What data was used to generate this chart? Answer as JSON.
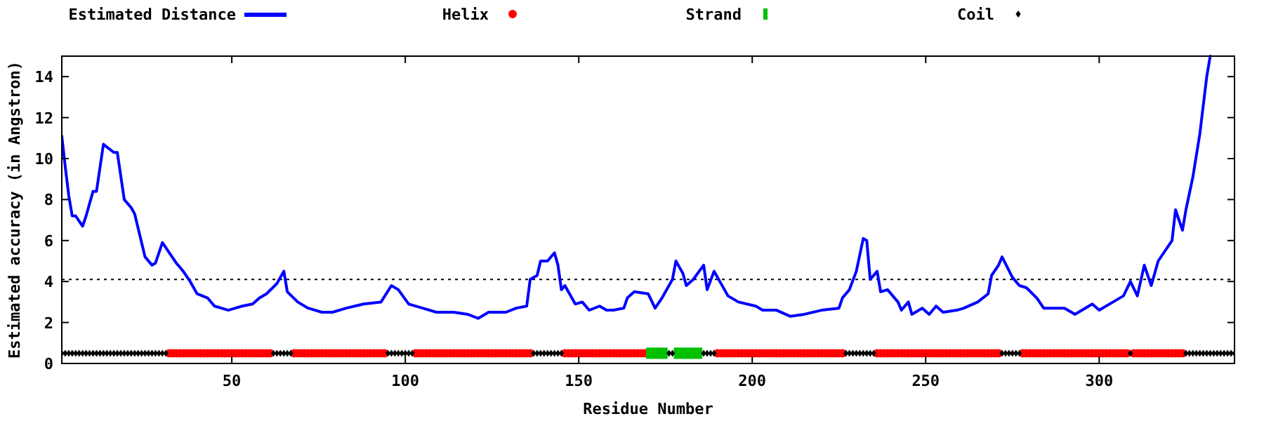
{
  "chart_data": {
    "type": "line",
    "xlabel": "Residue Number",
    "ylabel": "Estimated accuracy (in Angstron)",
    "xlim": [
      1,
      339
    ],
    "ylim": [
      0,
      15
    ],
    "xticks": [
      50,
      100,
      150,
      200,
      250,
      300
    ],
    "yticks": [
      0,
      2,
      4,
      6,
      8,
      10,
      12,
      14
    ],
    "grid": false,
    "legend": "top",
    "ref_lines": [
      {
        "axis": "y",
        "value": 4.1,
        "color": "#000000",
        "line_style": "dotted"
      }
    ],
    "series": [
      {
        "name": "Estimated Distance",
        "color": "#0000ff",
        "marker": "none",
        "x": [
          1,
          2,
          3,
          4,
          5,
          7,
          8,
          10,
          11,
          13,
          16,
          17,
          19,
          21,
          22,
          25,
          27,
          28,
          30,
          32,
          34,
          36,
          38,
          40,
          43,
          45,
          47,
          49,
          51,
          53,
          56,
          58,
          60,
          63,
          65,
          66,
          69,
          72,
          76,
          79,
          83,
          88,
          93,
          96,
          98,
          101,
          105,
          109,
          114,
          118,
          121,
          124,
          129,
          132,
          135,
          136,
          138,
          139,
          141,
          143,
          144,
          145,
          146,
          149,
          151,
          153,
          156,
          158,
          160,
          163,
          164,
          166,
          170,
          172,
          174,
          177,
          178,
          180,
          181,
          183,
          186,
          187,
          189,
          191,
          193,
          196,
          201,
          203,
          207,
          211,
          215,
          220,
          225,
          226,
          228,
          230,
          232,
          233,
          234,
          236,
          237,
          239,
          242,
          243,
          245,
          246,
          249,
          251,
          253,
          255,
          259,
          261,
          265,
          268,
          269,
          271,
          272,
          275,
          277,
          279,
          282,
          284,
          287,
          290,
          293,
          296,
          298,
          300,
          304,
          307,
          309,
          311,
          313,
          315,
          317,
          321,
          322,
          324,
          325,
          327,
          329,
          331,
          332
        ],
        "values": [
          11.1,
          9.6,
          8.2,
          7.2,
          7.2,
          6.7,
          7.2,
          8.4,
          8.4,
          10.7,
          10.3,
          10.3,
          8.0,
          7.6,
          7.3,
          5.2,
          4.8,
          4.9,
          5.9,
          5.4,
          4.9,
          4.5,
          4.0,
          3.4,
          3.2,
          2.8,
          2.7,
          2.6,
          2.7,
          2.8,
          2.9,
          3.2,
          3.4,
          3.9,
          4.5,
          3.5,
          3.0,
          2.7,
          2.5,
          2.5,
          2.7,
          2.9,
          3.0,
          3.8,
          3.6,
          2.9,
          2.7,
          2.5,
          2.5,
          2.4,
          2.2,
          2.5,
          2.5,
          2.7,
          2.8,
          4.1,
          4.3,
          5.0,
          5.0,
          5.4,
          4.8,
          3.6,
          3.8,
          2.9,
          3.0,
          2.6,
          2.8,
          2.6,
          2.6,
          2.7,
          3.2,
          3.5,
          3.4,
          2.7,
          3.2,
          4.1,
          5.0,
          4.4,
          3.8,
          4.1,
          4.8,
          3.6,
          4.5,
          3.9,
          3.3,
          3.0,
          2.8,
          2.6,
          2.6,
          2.3,
          2.4,
          2.6,
          2.7,
          3.2,
          3.6,
          4.5,
          6.1,
          6.0,
          4.1,
          4.5,
          3.5,
          3.6,
          3.0,
          2.6,
          3.0,
          2.4,
          2.7,
          2.4,
          2.8,
          2.5,
          2.6,
          2.7,
          3.0,
          3.4,
          4.3,
          4.8,
          5.2,
          4.2,
          3.8,
          3.7,
          3.2,
          2.7,
          2.7,
          2.7,
          2.4,
          2.7,
          2.9,
          2.6,
          3.0,
          3.3,
          4.0,
          3.3,
          4.8,
          3.8,
          5.0,
          6.0,
          7.5,
          6.5,
          7.5,
          9.1,
          11.2,
          14.0,
          15
        ]
      },
      {
        "name": "Helix",
        "type": "scatter",
        "color": "#ff0000",
        "marker": "circle",
        "x": [
          32,
          33,
          34,
          35,
          36,
          37,
          38,
          39,
          40,
          41,
          42,
          43,
          44,
          45,
          46,
          47,
          48,
          49,
          50,
          51,
          52,
          53,
          54,
          55,
          56,
          57,
          58,
          59,
          60,
          61,
          68,
          69,
          70,
          71,
          72,
          73,
          74,
          75,
          76,
          77,
          78,
          79,
          80,
          81,
          82,
          83,
          84,
          85,
          86,
          87,
          88,
          89,
          90,
          91,
          92,
          93,
          94,
          103,
          104,
          105,
          106,
          107,
          108,
          109,
          110,
          111,
          112,
          113,
          114,
          115,
          116,
          117,
          118,
          119,
          120,
          121,
          122,
          123,
          124,
          125,
          126,
          127,
          128,
          129,
          130,
          131,
          132,
          133,
          134,
          135,
          136,
          146,
          147,
          148,
          149,
          150,
          151,
          152,
          153,
          154,
          155,
          156,
          157,
          158,
          159,
          160,
          161,
          162,
          163,
          164,
          165,
          166,
          167,
          168,
          169,
          190,
          191,
          192,
          193,
          194,
          195,
          196,
          197,
          198,
          199,
          200,
          201,
          202,
          203,
          204,
          205,
          206,
          207,
          208,
          209,
          210,
          211,
          212,
          213,
          214,
          215,
          216,
          217,
          218,
          219,
          220,
          221,
          222,
          223,
          224,
          225,
          226,
          236,
          237,
          238,
          239,
          240,
          241,
          242,
          243,
          244,
          245,
          246,
          247,
          248,
          249,
          250,
          251,
          252,
          253,
          254,
          255,
          256,
          257,
          258,
          259,
          260,
          261,
          262,
          263,
          264,
          265,
          266,
          267,
          268,
          269,
          270,
          271,
          278,
          279,
          280,
          281,
          282,
          283,
          284,
          285,
          286,
          287,
          288,
          289,
          290,
          291,
          292,
          293,
          294,
          295,
          296,
          297,
          298,
          299,
          300,
          301,
          302,
          303,
          304,
          305,
          306,
          307,
          308,
          310,
          311,
          312,
          313,
          314,
          315,
          316,
          317,
          318,
          319,
          320,
          321,
          322,
          323,
          324
        ],
        "values": [
          0.5,
          0.5,
          0.5,
          0.5,
          0.5,
          0.5,
          0.5,
          0.5,
          0.5,
          0.5,
          0.5,
          0.5,
          0.5,
          0.5,
          0.5,
          0.5,
          0.5,
          0.5,
          0.5,
          0.5,
          0.5,
          0.5,
          0.5,
          0.5,
          0.5,
          0.5,
          0.5,
          0.5,
          0.5,
          0.5,
          0.5,
          0.5,
          0.5,
          0.5,
          0.5,
          0.5,
          0.5,
          0.5,
          0.5,
          0.5,
          0.5,
          0.5,
          0.5,
          0.5,
          0.5,
          0.5,
          0.5,
          0.5,
          0.5,
          0.5,
          0.5,
          0.5,
          0.5,
          0.5,
          0.5,
          0.5,
          0.5,
          0.5,
          0.5,
          0.5,
          0.5,
          0.5,
          0.5,
          0.5,
          0.5,
          0.5,
          0.5,
          0.5,
          0.5,
          0.5,
          0.5,
          0.5,
          0.5,
          0.5,
          0.5,
          0.5,
          0.5,
          0.5,
          0.5,
          0.5,
          0.5,
          0.5,
          0.5,
          0.5,
          0.5,
          0.5,
          0.5,
          0.5,
          0.5,
          0.5,
          0.5,
          0.5,
          0.5,
          0.5,
          0.5,
          0.5,
          0.5,
          0.5,
          0.5,
          0.5,
          0.5,
          0.5,
          0.5,
          0.5,
          0.5,
          0.5,
          0.5,
          0.5,
          0.5,
          0.5,
          0.5,
          0.5,
          0.5,
          0.5,
          0.5,
          0.5,
          0.5,
          0.5,
          0.5,
          0.5,
          0.5,
          0.5,
          0.5,
          0.5,
          0.5,
          0.5,
          0.5,
          0.5,
          0.5,
          0.5,
          0.5,
          0.5,
          0.5,
          0.5,
          0.5,
          0.5,
          0.5,
          0.5,
          0.5,
          0.5,
          0.5,
          0.5,
          0.5,
          0.5,
          0.5,
          0.5,
          0.5,
          0.5,
          0.5,
          0.5,
          0.5,
          0.5,
          0.5,
          0.5,
          0.5,
          0.5,
          0.5,
          0.5,
          0.5,
          0.5,
          0.5,
          0.5,
          0.5,
          0.5,
          0.5,
          0.5,
          0.5,
          0.5,
          0.5,
          0.5,
          0.5,
          0.5,
          0.5,
          0.5,
          0.5,
          0.5,
          0.5,
          0.5,
          0.5,
          0.5,
          0.5,
          0.5,
          0.5,
          0.5,
          0.5,
          0.5,
          0.5,
          0.5,
          0.5,
          0.5,
          0.5,
          0.5,
          0.5,
          0.5,
          0.5,
          0.5,
          0.5,
          0.5,
          0.5,
          0.5,
          0.5,
          0.5,
          0.5,
          0.5,
          0.5,
          0.5,
          0.5,
          0.5,
          0.5,
          0.5,
          0.5,
          0.5,
          0.5,
          0.5,
          0.5,
          0.5,
          0.5,
          0.5,
          0.5,
          0.5,
          0.5,
          0.5,
          0.5,
          0.5,
          0.5,
          0.5,
          0.5,
          0.5,
          0.5,
          0.5,
          0.5,
          0.5,
          0.5,
          0.5
        ]
      },
      {
        "name": "Strand",
        "type": "scatter",
        "color": "#00c000",
        "marker": "square",
        "x": [
          170,
          171,
          172,
          173,
          174,
          175,
          178,
          179,
          180,
          181,
          182,
          183,
          184,
          185
        ],
        "values": [
          0.5,
          0.5,
          0.5,
          0.5,
          0.5,
          0.5,
          0.5,
          0.5,
          0.5,
          0.5,
          0.5,
          0.5,
          0.5,
          0.5
        ]
      },
      {
        "name": "Coil",
        "type": "scatter",
        "color": "#000000",
        "marker": "diamond",
        "x": [
          1,
          2,
          3,
          4,
          5,
          6,
          7,
          8,
          9,
          10,
          11,
          12,
          13,
          14,
          15,
          16,
          17,
          18,
          19,
          20,
          21,
          22,
          23,
          24,
          25,
          26,
          27,
          28,
          29,
          30,
          31,
          62,
          63,
          64,
          65,
          66,
          67,
          95,
          96,
          97,
          98,
          99,
          100,
          101,
          102,
          137,
          138,
          139,
          140,
          141,
          142,
          143,
          144,
          145,
          176,
          177,
          186,
          187,
          188,
          189,
          227,
          228,
          229,
          230,
          231,
          232,
          233,
          234,
          235,
          272,
          273,
          274,
          275,
          276,
          277,
          309,
          325,
          326,
          327,
          328,
          329,
          330,
          331,
          332,
          333,
          334,
          335,
          336,
          337,
          338,
          339
        ],
        "values": [
          0.5,
          0.5,
          0.5,
          0.5,
          0.5,
          0.5,
          0.5,
          0.5,
          0.5,
          0.5,
          0.5,
          0.5,
          0.5,
          0.5,
          0.5,
          0.5,
          0.5,
          0.5,
          0.5,
          0.5,
          0.5,
          0.5,
          0.5,
          0.5,
          0.5,
          0.5,
          0.5,
          0.5,
          0.5,
          0.5,
          0.5,
          0.5,
          0.5,
          0.5,
          0.5,
          0.5,
          0.5,
          0.5,
          0.5,
          0.5,
          0.5,
          0.5,
          0.5,
          0.5,
          0.5,
          0.5,
          0.5,
          0.5,
          0.5,
          0.5,
          0.5,
          0.5,
          0.5,
          0.5,
          0.5,
          0.5,
          0.5,
          0.5,
          0.5,
          0.5,
          0.5,
          0.5,
          0.5,
          0.5,
          0.5,
          0.5,
          0.5,
          0.5,
          0.5,
          0.5,
          0.5,
          0.5,
          0.5,
          0.5,
          0.5,
          0.5,
          0.5,
          0.5,
          0.5,
          0.5,
          0.5,
          0.5,
          0.5,
          0.5,
          0.5,
          0.5,
          0.5,
          0.5,
          0.5,
          0.5,
          0.5
        ]
      }
    ]
  }
}
